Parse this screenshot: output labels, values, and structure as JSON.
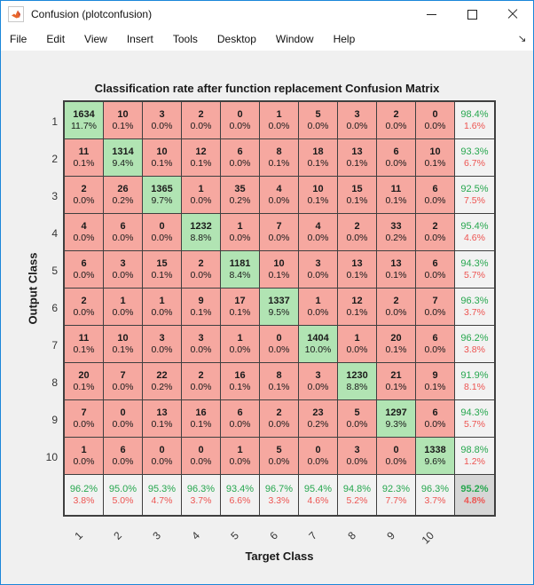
{
  "window": {
    "title": "Confusion (plotconfusion)",
    "icon": "matlab-logo",
    "controls": [
      "minimize",
      "maximize",
      "close"
    ]
  },
  "menu": {
    "items": [
      "File",
      "Edit",
      "View",
      "Insert",
      "Tools",
      "Desktop",
      "Window",
      "Help"
    ],
    "dock_glyph": "↘"
  },
  "figure": {
    "title": "Classification rate after function replacement Confusion Matrix",
    "xlabel": "Target Class",
    "ylabel": "Output Class"
  },
  "colors": {
    "diagonal_bg": "#b1e4b3",
    "off_diagonal_bg": "#f6a8a0",
    "summary_bg": "#f2f2f2",
    "total_bg": "#d6d6d6",
    "good_text": "#27a74f",
    "bad_text": "#ed5451",
    "grid_line": "#3f3f3f",
    "window_border": "#1a86d9"
  },
  "chart_data": {
    "type": "heatmap",
    "subtype": "confusion-matrix",
    "title": "Classification rate after function replacement Confusion Matrix",
    "xlabel": "Target Class",
    "ylabel": "Output Class",
    "classes": [
      "1",
      "2",
      "3",
      "4",
      "5",
      "6",
      "7",
      "8",
      "9",
      "10"
    ],
    "counts": [
      [
        1634,
        10,
        3,
        2,
        0,
        1,
        5,
        3,
        2,
        0
      ],
      [
        11,
        1314,
        10,
        12,
        6,
        8,
        18,
        13,
        6,
        10
      ],
      [
        2,
        26,
        1365,
        1,
        35,
        4,
        10,
        15,
        11,
        6
      ],
      [
        4,
        6,
        0,
        1232,
        1,
        7,
        4,
        2,
        33,
        2
      ],
      [
        6,
        3,
        15,
        2,
        1181,
        10,
        3,
        13,
        13,
        6
      ],
      [
        2,
        1,
        1,
        9,
        17,
        1337,
        1,
        12,
        2,
        7
      ],
      [
        11,
        10,
        3,
        3,
        1,
        0,
        1404,
        1,
        20,
        6
      ],
      [
        20,
        7,
        22,
        2,
        16,
        8,
        3,
        1230,
        21,
        9
      ],
      [
        7,
        0,
        13,
        16,
        6,
        2,
        23,
        5,
        1297,
        6
      ],
      [
        1,
        6,
        0,
        0,
        1,
        5,
        0,
        3,
        0,
        1338
      ]
    ],
    "cell_percent": [
      [
        "11.7%",
        "0.1%",
        "0.0%",
        "0.0%",
        "0.0%",
        "0.0%",
        "0.0%",
        "0.0%",
        "0.0%",
        "0.0%"
      ],
      [
        "0.1%",
        "9.4%",
        "0.1%",
        "0.1%",
        "0.0%",
        "0.1%",
        "0.1%",
        "0.1%",
        "0.0%",
        "0.1%"
      ],
      [
        "0.0%",
        "0.2%",
        "9.7%",
        "0.0%",
        "0.2%",
        "0.0%",
        "0.1%",
        "0.1%",
        "0.1%",
        "0.0%"
      ],
      [
        "0.0%",
        "0.0%",
        "0.0%",
        "8.8%",
        "0.0%",
        "0.0%",
        "0.0%",
        "0.0%",
        "0.2%",
        "0.0%"
      ],
      [
        "0.0%",
        "0.0%",
        "0.1%",
        "0.0%",
        "8.4%",
        "0.1%",
        "0.0%",
        "0.1%",
        "0.1%",
        "0.0%"
      ],
      [
        "0.0%",
        "0.0%",
        "0.0%",
        "0.1%",
        "0.1%",
        "9.5%",
        "0.0%",
        "0.1%",
        "0.0%",
        "0.0%"
      ],
      [
        "0.1%",
        "0.1%",
        "0.0%",
        "0.0%",
        "0.0%",
        "0.0%",
        "10.0%",
        "0.0%",
        "0.1%",
        "0.0%"
      ],
      [
        "0.1%",
        "0.0%",
        "0.2%",
        "0.0%",
        "0.1%",
        "0.1%",
        "0.0%",
        "8.8%",
        "0.1%",
        "0.1%"
      ],
      [
        "0.0%",
        "0.0%",
        "0.1%",
        "0.1%",
        "0.0%",
        "0.0%",
        "0.2%",
        "0.0%",
        "9.3%",
        "0.0%"
      ],
      [
        "0.0%",
        "0.0%",
        "0.0%",
        "0.0%",
        "0.0%",
        "0.0%",
        "0.0%",
        "0.0%",
        "0.0%",
        "9.6%"
      ]
    ],
    "row_summary": [
      [
        "98.4%",
        "1.6%"
      ],
      [
        "93.3%",
        "6.7%"
      ],
      [
        "92.5%",
        "7.5%"
      ],
      [
        "95.4%",
        "4.6%"
      ],
      [
        "94.3%",
        "5.7%"
      ],
      [
        "96.3%",
        "3.7%"
      ],
      [
        "96.2%",
        "3.8%"
      ],
      [
        "91.9%",
        "8.1%"
      ],
      [
        "94.3%",
        "5.7%"
      ],
      [
        "98.8%",
        "1.2%"
      ]
    ],
    "col_summary": [
      [
        "96.2%",
        "3.8%"
      ],
      [
        "95.0%",
        "5.0%"
      ],
      [
        "95.3%",
        "4.7%"
      ],
      [
        "96.3%",
        "3.7%"
      ],
      [
        "93.4%",
        "6.6%"
      ],
      [
        "96.7%",
        "3.3%"
      ],
      [
        "95.4%",
        "4.6%"
      ],
      [
        "94.8%",
        "5.2%"
      ],
      [
        "92.3%",
        "7.7%"
      ],
      [
        "96.3%",
        "3.7%"
      ]
    ],
    "overall": [
      "95.2%",
      "4.8%"
    ]
  }
}
